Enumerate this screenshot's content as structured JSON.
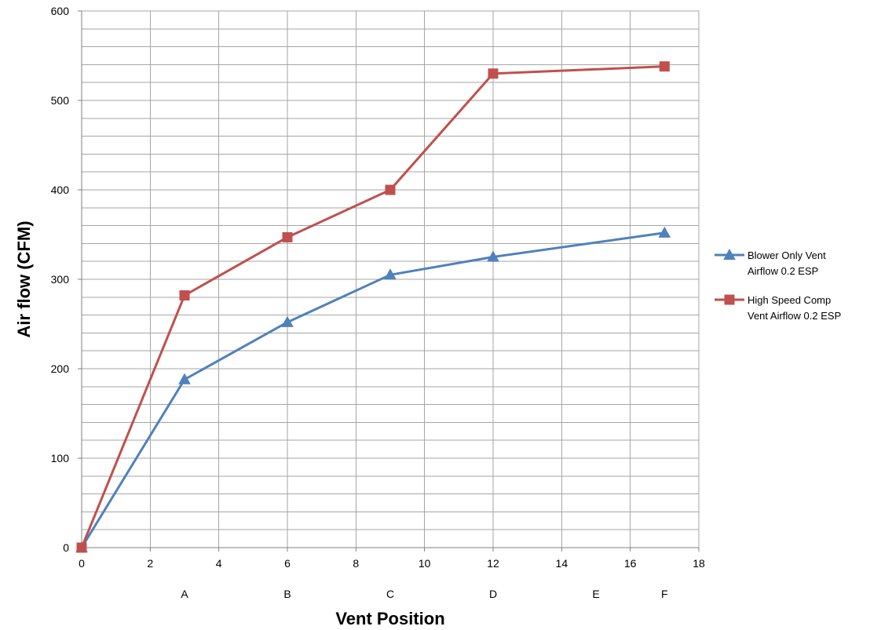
{
  "chart_data": {
    "type": "line",
    "xlabel": "Vent Position",
    "ylabel": "Air flow (CFM)",
    "xlim": [
      0,
      18
    ],
    "ylim": [
      0,
      600
    ],
    "x_major_ticks": [
      0,
      2,
      4,
      6,
      8,
      10,
      12,
      14,
      16,
      18
    ],
    "y_major_ticks": [
      0,
      100,
      200,
      300,
      400,
      500,
      600
    ],
    "y_minor_step": 20,
    "grid": true,
    "legend_position": "right",
    "categories": [
      {
        "label": "A",
        "x": 3
      },
      {
        "label": "B",
        "x": 6
      },
      {
        "label": "C",
        "x": 9
      },
      {
        "label": "D",
        "x": 12
      },
      {
        "label": "E",
        "x": 15
      },
      {
        "label": "F",
        "x": 17
      }
    ],
    "series": [
      {
        "name_lines": [
          "Blower Only Vent",
          "Airflow 0.2 ESP"
        ],
        "color": "#4f81bd",
        "marker": "triangle",
        "x": [
          0,
          3,
          6,
          9,
          12,
          17
        ],
        "values": [
          0,
          188,
          252,
          305,
          325,
          352
        ]
      },
      {
        "name_lines": [
          "High Speed Comp",
          "Vent Airflow 0.2 ESP"
        ],
        "color": "#c0504d",
        "marker": "square",
        "x": [
          0,
          3,
          6,
          9,
          12,
          17
        ],
        "values": [
          0,
          282,
          347,
          400,
          530,
          538
        ]
      }
    ],
    "grid_color": "#a6a6a6",
    "axis_color": "#7f7f7f"
  }
}
